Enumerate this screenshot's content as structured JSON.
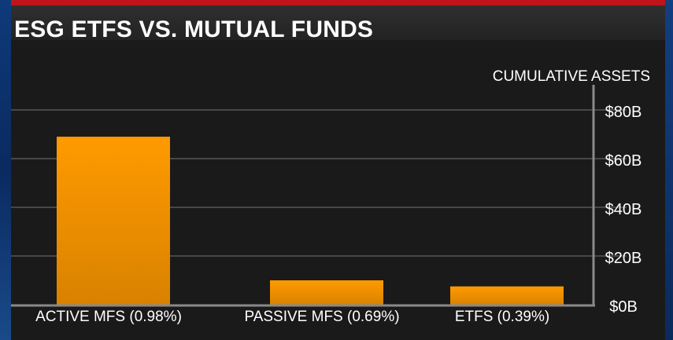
{
  "header": {
    "title": "ESG ETFS VS. MUTUAL FUNDS"
  },
  "chart_data": {
    "type": "bar",
    "ylabel": "CUMULATIVE ASSETS",
    "categories": [
      "ACTIVE MFS (0.98%)",
      "PASSIVE MFS (0.69%)",
      "ETFS (0.39%)"
    ],
    "values": [
      69,
      10,
      7.5
    ],
    "ylim": [
      0,
      80
    ],
    "yticks": [
      {
        "value": 0,
        "label": "$0B"
      },
      {
        "value": 20,
        "label": "$20B"
      },
      {
        "value": 40,
        "label": "$40B"
      },
      {
        "value": 60,
        "label": "$60B"
      },
      {
        "value": 80,
        "label": "$80B"
      }
    ],
    "grid": true,
    "colors": {
      "bar_top": "#ff9a00",
      "bar_bottom": "#d98200",
      "grid": "#474747",
      "text": "#ffffff",
      "accent": "#c0131b"
    }
  }
}
